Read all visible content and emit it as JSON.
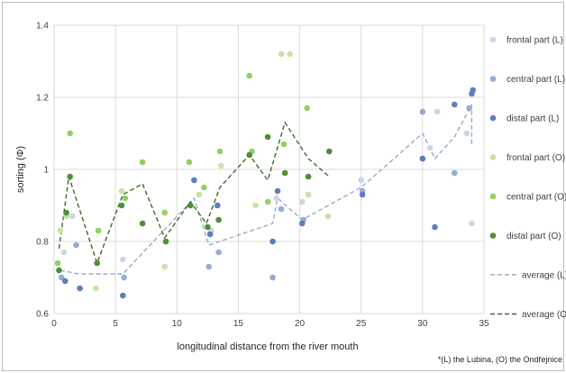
{
  "chart_data": {
    "type": "scatter",
    "xlabel": "longitudinal distance from the river mouth",
    "ylabel": "sorting (Φ)",
    "xlim": [
      0,
      35
    ],
    "ylim": [
      0.6,
      1.4
    ],
    "x_ticks": [
      "0",
      "5",
      "10",
      "15",
      "20",
      "25",
      "30",
      "35"
    ],
    "y_ticks": [
      "0.6",
      "0.8",
      "1",
      "1.2",
      "1.4"
    ],
    "grid": true,
    "legend_position": "right",
    "footnote": "*(L) the Lubina, (O) the Ondřejnice",
    "series": [
      {
        "name": "frontal part (L)",
        "kind": "marker",
        "color": "#c9d6e8",
        "points": [
          [
            0.8,
            0.77
          ],
          [
            1.5,
            0.87
          ],
          [
            5.6,
            0.75
          ],
          [
            12.8,
            0.83
          ],
          [
            18.1,
            0.92
          ],
          [
            20.2,
            0.91
          ],
          [
            25.0,
            0.97
          ],
          [
            30.6,
            1.06
          ],
          [
            31.2,
            1.16
          ],
          [
            33.6,
            1.1
          ],
          [
            34.0,
            0.85
          ]
        ]
      },
      {
        "name": "central part (L)",
        "kind": "marker",
        "color": "#96acd2",
        "points": [
          [
            0.6,
            0.7
          ],
          [
            1.8,
            0.79
          ],
          [
            5.7,
            0.7
          ],
          [
            12.6,
            0.73
          ],
          [
            13.4,
            0.77
          ],
          [
            17.8,
            0.7
          ],
          [
            18.5,
            0.89
          ],
          [
            20.3,
            0.86
          ],
          [
            25.1,
            0.94
          ],
          [
            30.0,
            1.16
          ],
          [
            32.6,
            0.99
          ],
          [
            33.8,
            1.17
          ]
        ]
      },
      {
        "name": "distal part (L)",
        "kind": "marker",
        "color": "#5b7fb8",
        "points": [
          [
            0.9,
            0.69
          ],
          [
            2.1,
            0.67
          ],
          [
            5.6,
            0.65
          ],
          [
            11.4,
            0.97
          ],
          [
            12.7,
            0.82
          ],
          [
            13.3,
            0.9
          ],
          [
            17.8,
            0.8
          ],
          [
            18.2,
            0.94
          ],
          [
            20.2,
            0.85
          ],
          [
            25.1,
            0.93
          ],
          [
            30.0,
            1.03
          ],
          [
            31.0,
            0.84
          ],
          [
            32.6,
            1.18
          ],
          [
            34.0,
            1.21
          ],
          [
            34.1,
            1.22
          ]
        ]
      },
      {
        "name": "frontal part (O)",
        "kind": "marker",
        "color": "#c8e3a6",
        "points": [
          [
            0.5,
            0.83
          ],
          [
            1.0,
            0.87
          ],
          [
            3.4,
            0.67
          ],
          [
            5.5,
            0.94
          ],
          [
            9.0,
            0.73
          ],
          [
            11.8,
            0.93
          ],
          [
            13.6,
            1.01
          ],
          [
            16.4,
            0.9
          ],
          [
            18.5,
            1.32
          ],
          [
            19.2,
            1.32
          ],
          [
            20.7,
            0.93
          ],
          [
            22.3,
            0.87
          ]
        ]
      },
      {
        "name": "central part (O)",
        "kind": "marker",
        "color": "#92cf67",
        "points": [
          [
            0.3,
            0.74
          ],
          [
            1.3,
            1.1
          ],
          [
            3.6,
            0.83
          ],
          [
            5.8,
            0.92
          ],
          [
            7.2,
            1.02
          ],
          [
            9.0,
            0.88
          ],
          [
            11.0,
            1.02
          ],
          [
            12.2,
            0.95
          ],
          [
            13.5,
            1.05
          ],
          [
            15.9,
            1.26
          ],
          [
            16.1,
            1.05
          ],
          [
            17.4,
            0.91
          ],
          [
            18.7,
            1.07
          ],
          [
            20.6,
            1.17
          ]
        ]
      },
      {
        "name": "distal part (O)",
        "kind": "marker",
        "color": "#4f8f35",
        "points": [
          [
            0.4,
            0.72
          ],
          [
            1.0,
            0.88
          ],
          [
            1.3,
            0.98
          ],
          [
            3.5,
            0.74
          ],
          [
            5.5,
            0.9
          ],
          [
            7.2,
            0.85
          ],
          [
            9.1,
            0.8
          ],
          [
            11.1,
            0.9
          ],
          [
            12.5,
            0.84
          ],
          [
            13.4,
            0.86
          ],
          [
            15.9,
            1.04
          ],
          [
            17.4,
            1.09
          ],
          [
            18.8,
            0.99
          ],
          [
            20.7,
            0.98
          ],
          [
            22.4,
            1.05
          ]
        ]
      },
      {
        "name": "average (L)",
        "kind": "line",
        "color": "#9aaac8",
        "points": [
          [
            0.5,
            0.72
          ],
          [
            2,
            0.71
          ],
          [
            5.6,
            0.71
          ],
          [
            11.4,
            0.92
          ],
          [
            12.6,
            0.79
          ],
          [
            17.8,
            0.85
          ],
          [
            18.2,
            0.92
          ],
          [
            20.2,
            0.86
          ],
          [
            25,
            0.95
          ],
          [
            30,
            1.1
          ],
          [
            31,
            1.03
          ],
          [
            32.6,
            1.09
          ],
          [
            34,
            1.18
          ],
          [
            34,
            1.07
          ]
        ]
      },
      {
        "name": "average (O)",
        "kind": "line",
        "color": "#3d6b2a",
        "points": [
          [
            0.4,
            0.78
          ],
          [
            1.2,
            0.98
          ],
          [
            3.5,
            0.74
          ],
          [
            5.6,
            0.93
          ],
          [
            7.2,
            0.96
          ],
          [
            9,
            0.81
          ],
          [
            11.1,
            0.91
          ],
          [
            12.4,
            0.85
          ],
          [
            13.5,
            0.95
          ],
          [
            15.9,
            1.04
          ],
          [
            17.4,
            0.97
          ],
          [
            18.8,
            1.13
          ],
          [
            20.7,
            1.03
          ],
          [
            22.4,
            0.98
          ]
        ]
      }
    ]
  }
}
